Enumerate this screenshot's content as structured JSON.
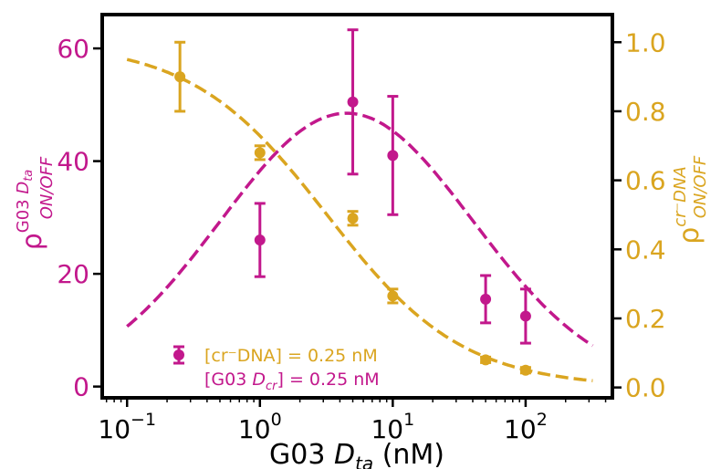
{
  "colors": {
    "magenta": "#c2188c",
    "gold": "#daa520",
    "axis": "#000000"
  },
  "chart_data": {
    "type": "scatter",
    "x_scale": "log",
    "xlim": [
      0.065,
      450
    ],
    "xlabel": {
      "main": "G03 ",
      "italic": "D",
      "sub": "ta",
      "unit": " (nM)"
    },
    "x_ticks": [
      {
        "value": 0.1,
        "base": "10",
        "exp": "−1"
      },
      {
        "value": 1,
        "base": "10",
        "exp": "0"
      },
      {
        "value": 10,
        "base": "10",
        "exp": "1"
      },
      {
        "value": 100,
        "base": "10",
        "exp": "2"
      }
    ],
    "y_left": {
      "lim": [
        -2,
        66
      ],
      "ticks": [
        "0",
        "20",
        "40",
        "60"
      ],
      "tick_values": [
        0,
        20,
        40,
        60
      ],
      "label": {
        "rho": "ρ",
        "sup_main": "G03 ",
        "sup_italic": "D",
        "sup_sub": "ta",
        "sub": "ON/OFF"
      }
    },
    "y_right": {
      "lim": [
        -0.03,
        1.08
      ],
      "ticks": [
        "0.0",
        "0.2",
        "0.4",
        "0.6",
        "0.8",
        "1.0"
      ],
      "tick_values": [
        0,
        0.2,
        0.4,
        0.6,
        0.8,
        1.0
      ],
      "label": {
        "rho": "ρ",
        "sup": "cr⁻DNA",
        "sub": "ON/OFF"
      }
    },
    "series": [
      {
        "axis": "left",
        "color": "magenta",
        "x": [
          1,
          5,
          10,
          50,
          100
        ],
        "y": [
          26,
          50.5,
          41,
          15.5,
          12.5
        ],
        "err": [
          6.5,
          12.8,
          10.5,
          4.2,
          4.8
        ],
        "fit": {
          "type": "lognormal",
          "peak": 48.5,
          "center": 4.5,
          "sigma_decades": 0.95,
          "x_range": [
            0.1,
            320
          ]
        }
      },
      {
        "axis": "right",
        "color": "gold",
        "x": [
          0.25,
          1,
          5,
          10,
          50,
          100
        ],
        "y": [
          0.9,
          0.68,
          0.49,
          0.265,
          0.08,
          0.05
        ],
        "err": [
          0.1,
          0.02,
          0.02,
          0.02,
          0.008,
          0.008
        ],
        "fit": {
          "type": "hill",
          "top": 1.0,
          "ec50": 3.2,
          "n": 0.85,
          "x_range": [
            0.1,
            320
          ]
        }
      }
    ],
    "legend": {
      "placement": "lower-left",
      "line1": {
        "text": "[cr⁻DNA] = 0.25 nM"
      },
      "line2": {
        "pre": "[G03 ",
        "italic": "D",
        "sub": "cr",
        "post": "] = 0.25 nM"
      }
    }
  }
}
